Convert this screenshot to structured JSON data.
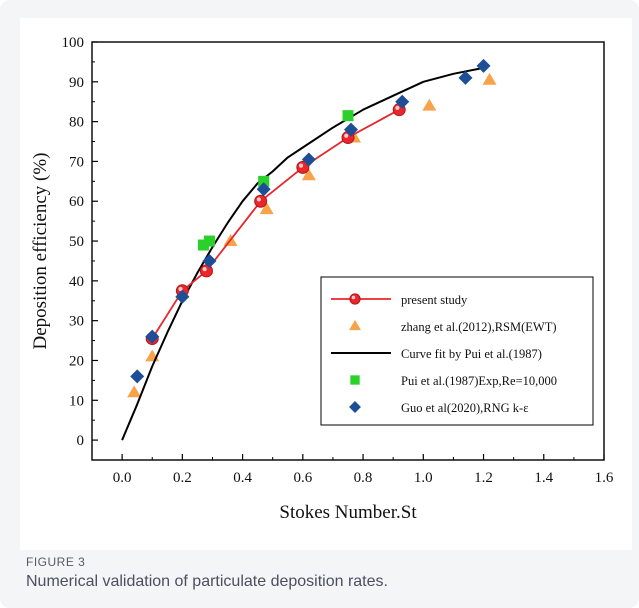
{
  "figure": {
    "label": "FIGURE 3",
    "caption": "Numerical validation of particulate deposition rates."
  },
  "chart_data": {
    "type": "scatter",
    "title": "",
    "xlabel": "Stokes Number.St",
    "ylabel": "Deposition efficiency (%)",
    "xlim": [
      -0.1,
      1.6
    ],
    "ylim": [
      -5,
      100
    ],
    "xticks": [
      0.0,
      0.2,
      0.4,
      0.6,
      0.8,
      1.0,
      1.2,
      1.4,
      1.6
    ],
    "xtick_labels": [
      "0.0",
      "0.2",
      "0.4",
      "0.6",
      "0.8",
      "1.0",
      "1.2",
      "1.4",
      "1.6"
    ],
    "yticks": [
      0,
      10,
      20,
      30,
      40,
      50,
      60,
      70,
      80,
      90,
      100
    ],
    "ytick_labels": [
      "0",
      "10",
      "20",
      "30",
      "40",
      "50",
      "60",
      "70",
      "80",
      "90",
      "100"
    ],
    "grid": false,
    "legend_position": "lower-right",
    "series": [
      {
        "name": "present study",
        "marker": "circle",
        "style": "line+markers",
        "color": "#e8262b",
        "x": [
          0.1,
          0.2,
          0.28,
          0.46,
          0.6,
          0.75,
          0.92
        ],
        "y": [
          25.5,
          37.5,
          42.5,
          60,
          68.5,
          76,
          83
        ]
      },
      {
        "name": "zhang et al.(2012),RSM(EWT)",
        "marker": "triangle",
        "style": "markers",
        "color": "#f6a34a",
        "x": [
          0.04,
          0.1,
          0.2,
          0.28,
          0.36,
          0.48,
          0.62,
          0.77,
          1.02,
          1.22
        ],
        "y": [
          12,
          21,
          37,
          43,
          50,
          58,
          66.5,
          76,
          84,
          90.5
        ]
      },
      {
        "name": "Curve fit by Pui et al.(1987)",
        "marker": "none",
        "style": "line",
        "color": "#000000",
        "x": [
          0.0,
          0.05,
          0.1,
          0.15,
          0.2,
          0.25,
          0.3,
          0.35,
          0.4,
          0.45,
          0.5,
          0.55,
          0.6,
          0.7,
          0.8,
          0.9,
          1.0,
          1.1,
          1.2
        ],
        "y": [
          0,
          9,
          18.5,
          27,
          35,
          42,
          48.5,
          54.5,
          60,
          64.5,
          67.5,
          71,
          73.5,
          78.5,
          83,
          86.5,
          90,
          92,
          93.5
        ]
      },
      {
        "name": "Pui et al.(1987)Exp,Re=10,000",
        "marker": "square",
        "style": "markers",
        "color": "#2bd12b",
        "x": [
          0.27,
          0.29,
          0.47,
          0.75
        ],
        "y": [
          49,
          50,
          65,
          81.5
        ]
      },
      {
        "name": "Guo et al(2020),RNG k-ε",
        "marker": "diamond",
        "style": "markers",
        "color": "#1d4e96",
        "x": [
          0.05,
          0.1,
          0.2,
          0.29,
          0.47,
          0.62,
          0.76,
          0.93,
          1.14,
          1.2
        ],
        "y": [
          16,
          26,
          36,
          45,
          63,
          70.5,
          78,
          85,
          91,
          94
        ]
      }
    ]
  }
}
